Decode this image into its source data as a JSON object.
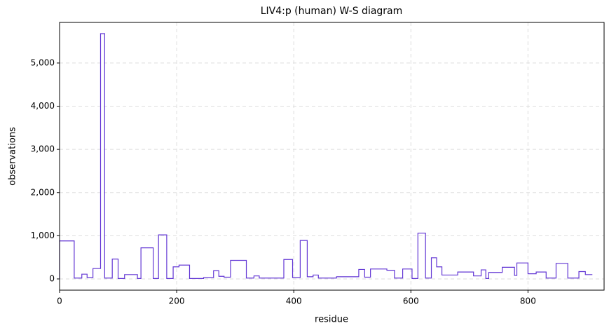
{
  "chart_data": {
    "type": "line",
    "title": "LIV4:p (human) W-S diagram",
    "x_label": "residue",
    "y_label": "observations",
    "x": [
      0,
      0,
      25,
      25,
      38,
      38,
      47,
      47,
      57,
      57,
      70,
      70,
      77,
      77,
      90,
      90,
      100,
      100,
      111,
      111,
      133,
      133,
      139,
      139,
      160,
      160,
      169,
      169,
      183,
      183,
      194,
      194,
      204,
      204,
      222,
      222,
      246,
      246,
      263,
      263,
      272,
      272,
      281,
      281,
      292,
      292,
      319,
      319,
      332,
      332,
      341,
      341,
      383,
      383,
      398,
      398,
      411,
      411,
      423,
      423,
      433,
      433,
      442,
      442,
      473,
      473,
      511,
      511,
      521,
      521,
      531,
      531,
      559,
      559,
      572,
      572,
      586,
      586,
      602,
      602,
      612,
      612,
      625,
      625,
      635,
      635,
      644,
      644,
      653,
      653,
      680,
      680,
      707,
      707,
      720,
      720,
      728,
      728,
      733,
      733,
      756,
      756,
      777,
      777,
      781,
      781,
      800,
      800,
      814,
      814,
      831,
      831,
      848,
      848,
      868,
      868,
      887,
      887,
      898,
      898,
      910
    ],
    "values": [
      0,
      880,
      880,
      20,
      20,
      110,
      110,
      30,
      30,
      240,
      240,
      5680,
      5680,
      20,
      20,
      460,
      460,
      10,
      10,
      100,
      100,
      10,
      10,
      720,
      720,
      10,
      10,
      1020,
      1020,
      10,
      10,
      280,
      280,
      320,
      320,
      10,
      10,
      30,
      30,
      190,
      190,
      60,
      60,
      40,
      40,
      430,
      430,
      20,
      20,
      70,
      70,
      20,
      20,
      450,
      450,
      30,
      30,
      890,
      890,
      50,
      50,
      90,
      90,
      20,
      20,
      50,
      50,
      220,
      220,
      40,
      40,
      230,
      230,
      200,
      200,
      20,
      20,
      230,
      230,
      10,
      10,
      1060,
      1060,
      20,
      20,
      490,
      490,
      280,
      280,
      90,
      90,
      160,
      160,
      70,
      70,
      210,
      210,
      10,
      10,
      150,
      150,
      270,
      270,
      80,
      80,
      370,
      370,
      120,
      120,
      160,
      160,
      20,
      20,
      360,
      360,
      20,
      20,
      170,
      170,
      100,
      100
    ],
    "color": "#6236d4",
    "xlim": [
      0,
      930
    ],
    "xticks": [
      0,
      200,
      400,
      600,
      800
    ],
    "ylim": [
      -260,
      5940
    ],
    "yticks": [
      0,
      {
        "value": 1000,
        "label": "1,000"
      },
      {
        "value": 2000,
        "label": "2,000"
      },
      {
        "value": 3000,
        "label": "3,000"
      },
      {
        "value": 4000,
        "label": "4,000"
      },
      {
        "value": 5000,
        "label": "5,000"
      }
    ],
    "grid": true
  }
}
